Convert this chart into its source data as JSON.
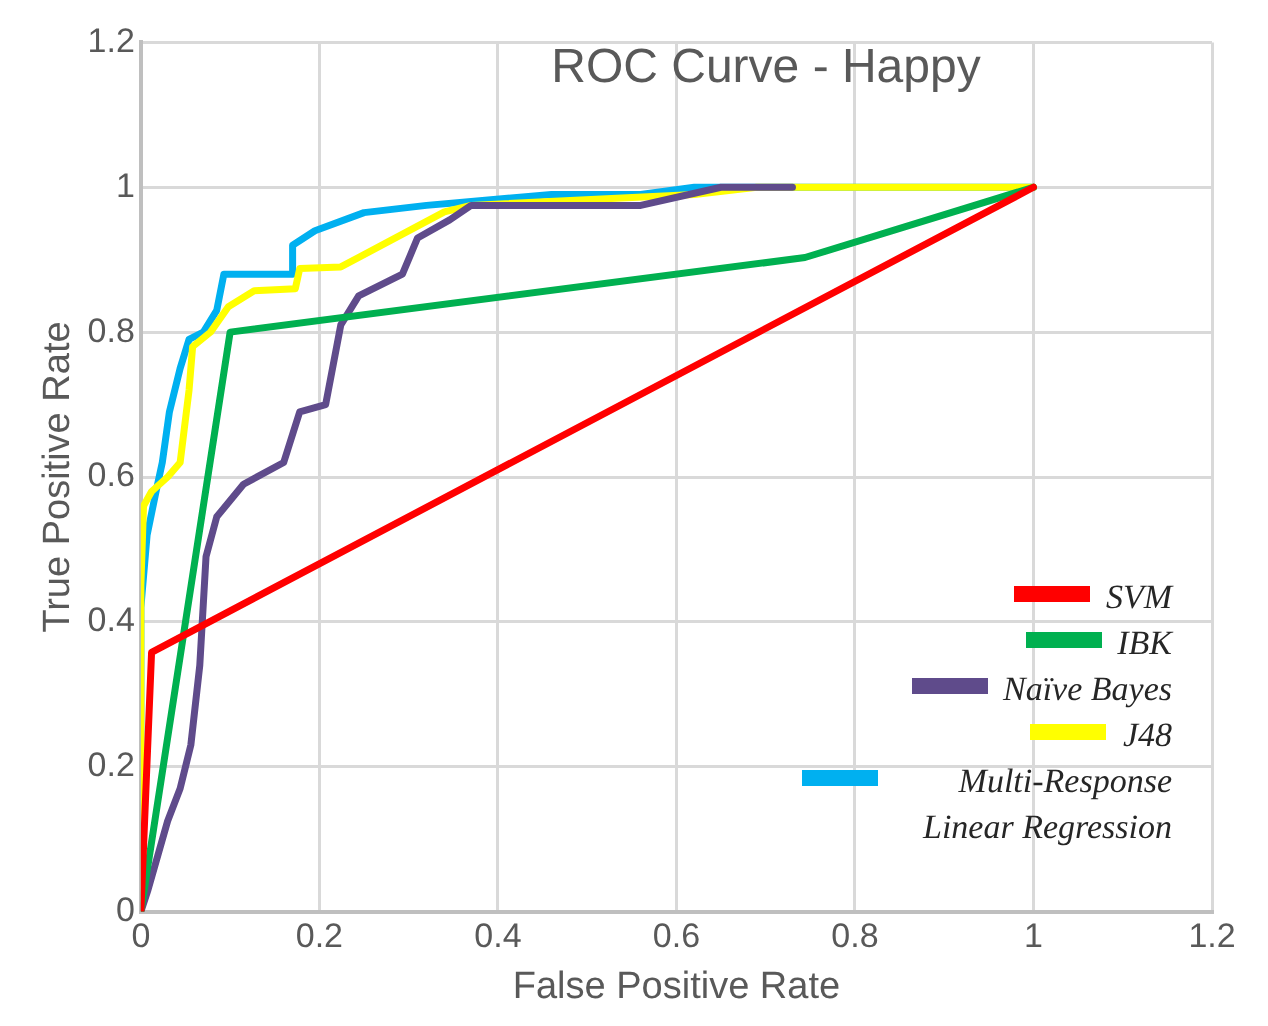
{
  "chart_data": {
    "type": "line",
    "title": "ROC Curve - Happy",
    "xlabel": "False Positive Rate",
    "ylabel": "True Positive Rate",
    "xlim": [
      0,
      1.2
    ],
    "ylim": [
      0,
      1.2
    ],
    "xticks": [
      0,
      0.2,
      0.4,
      0.6,
      0.8,
      1,
      1.2
    ],
    "yticks": [
      0,
      0.2,
      0.4,
      0.6,
      0.8,
      1,
      1.2
    ],
    "grid": true,
    "legend": "bottom right",
    "marker": "none",
    "line_style": "solid",
    "series": [
      {
        "name": "SVM",
        "color": "#ff0000",
        "x": [
          0,
          0.012,
          1
        ],
        "values": [
          0,
          0.358,
          1
        ]
      },
      {
        "name": "IBK",
        "color": "#00b050",
        "x": [
          0,
          0.1,
          0.744,
          1
        ],
        "values": [
          0,
          0.8,
          0.903,
          1
        ]
      },
      {
        "name": "Naïve Bayes",
        "color": "#5f4b8b",
        "x": [
          0,
          0.008,
          0.03,
          0.044,
          0.056,
          0.066,
          0.073,
          0.085,
          0.115,
          0.16,
          0.178,
          0.207,
          0.224,
          0.244,
          0.293,
          0.31,
          0.346,
          0.37,
          0.56,
          0.65,
          0.73
        ],
        "values": [
          0,
          0.03,
          0.125,
          0.17,
          0.23,
          0.34,
          0.49,
          0.545,
          0.59,
          0.62,
          0.69,
          0.7,
          0.81,
          0.85,
          0.88,
          0.93,
          0.955,
          0.975,
          0.975,
          1,
          1
        ]
      },
      {
        "name": "J48",
        "color": "#ffff00",
        "x": [
          0,
          0,
          0.003,
          0.012,
          0.03,
          0.044,
          0.054,
          0.058,
          0.078,
          0.098,
          0.127,
          0.173,
          0.178,
          0.224,
          0.34,
          0.37,
          0.62,
          0.69,
          1
        ],
        "values": [
          0,
          0.45,
          0.56,
          0.58,
          0.6,
          0.62,
          0.72,
          0.78,
          0.8,
          0.835,
          0.857,
          0.86,
          0.888,
          0.89,
          0.966,
          0.975,
          0.99,
          1,
          1
        ]
      },
      {
        "name": "Multi-Response Linear Regression",
        "color": "#00b0f0",
        "x": [
          0,
          0,
          0.007,
          0.017,
          0.024,
          0.032,
          0.044,
          0.054,
          0.07,
          0.085,
          0.093,
          0.17,
          0.17,
          0.195,
          0.25,
          0.32,
          0.46,
          0.56,
          0.62,
          1
        ],
        "values": [
          0,
          0.42,
          0.52,
          0.58,
          0.62,
          0.69,
          0.75,
          0.79,
          0.8,
          0.83,
          0.88,
          0.88,
          0.92,
          0.94,
          0.965,
          0.975,
          0.99,
          0.99,
          1,
          1
        ]
      }
    ]
  }
}
